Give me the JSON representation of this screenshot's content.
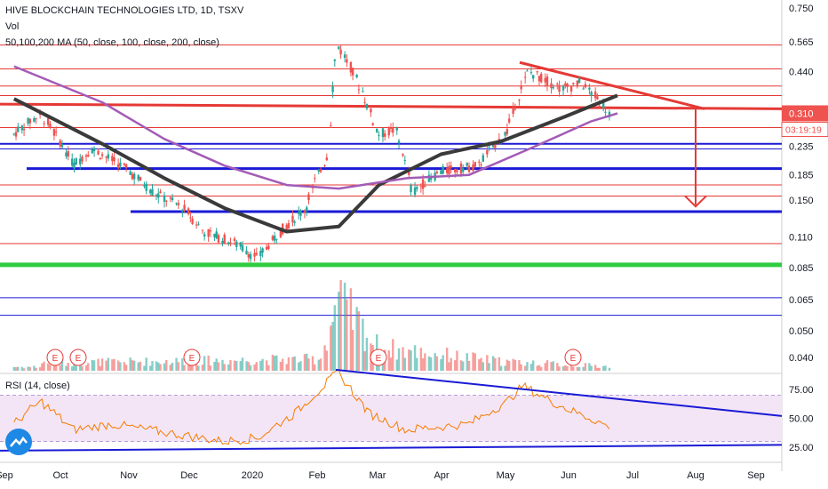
{
  "header": {
    "symbol_line": "HIVE BLOCKCHAIN TECHNOLOGIES LTD, 1D, TSXV",
    "vol_label": "Vol",
    "ma_label": "50,100,200 MA (50, close, 100, close, 200, close)",
    "rsi_label": "RSI (14, close)"
  },
  "colors": {
    "up": "#26a69a",
    "down": "#ef5350",
    "ma_dark": "#3a3a3a",
    "ma_purple": "#a35bb6",
    "red_line": "#e53935",
    "blue_line": "#1a1ad6",
    "green_line": "#2ecc40",
    "rsi_line": "#f57c00",
    "rsi_band": "#f3e5f5",
    "price_tag": "#ef5350"
  },
  "chart_data": {
    "type": "candlestick",
    "price_axis_ticks": [
      "0.750",
      "0.565",
      "0.440",
      "0.310",
      "0.235",
      "0.185",
      "0.150",
      "0.110",
      "0.085",
      "0.065",
      "0.050",
      "0.040"
    ],
    "price_scale": "log",
    "time_axis_ticks": [
      "Sep",
      "Oct",
      "Nov",
      "Dec",
      "2020",
      "Feb",
      "Mar",
      "Apr",
      "May",
      "Jun",
      "Jul",
      "Aug",
      "Sep"
    ],
    "last_price": "0.310",
    "countdown": "03:19:19",
    "earnings_markers": [
      "E",
      "E",
      "E",
      "E",
      "E"
    ],
    "price_path": [
      [
        "2019-09-01",
        0.26
      ],
      [
        "2019-09-15",
        0.31
      ],
      [
        "2019-09-25",
        0.24
      ],
      [
        "2019-10-01",
        0.2
      ],
      [
        "2019-10-10",
        0.23
      ],
      [
        "2019-10-25",
        0.2
      ],
      [
        "2019-11-10",
        0.16
      ],
      [
        "2019-11-25",
        0.14
      ],
      [
        "2019-12-05",
        0.115
      ],
      [
        "2019-12-20",
        0.105
      ],
      [
        "2020-01-01",
        0.092
      ],
      [
        "2020-01-10",
        0.11
      ],
      [
        "2020-01-25",
        0.14
      ],
      [
        "2020-02-05",
        0.22
      ],
      [
        "2020-02-10",
        0.55
      ],
      [
        "2020-02-20",
        0.4
      ],
      [
        "2020-03-01",
        0.26
      ],
      [
        "2020-03-10",
        0.27
      ],
      [
        "2020-03-18",
        0.16
      ],
      [
        "2020-04-01",
        0.19
      ],
      [
        "2020-04-20",
        0.2
      ],
      [
        "2020-05-05",
        0.27
      ],
      [
        "2020-05-15",
        0.44
      ],
      [
        "2020-06-01",
        0.38
      ],
      [
        "2020-06-10",
        0.4
      ],
      [
        "2020-06-25",
        0.31
      ]
    ],
    "moving_averages": [
      {
        "name": "MA 50",
        "color": "#3a3a3a",
        "points": [
          [
            "2019-09-01",
            0.35
          ],
          [
            "2019-10-15",
            0.24
          ],
          [
            "2019-11-15",
            0.18
          ],
          [
            "2019-12-15",
            0.14
          ],
          [
            "2020-01-15",
            0.115
          ],
          [
            "2020-02-10",
            0.12
          ],
          [
            "2020-03-01",
            0.17
          ],
          [
            "2020-04-01",
            0.22
          ],
          [
            "2020-05-01",
            0.245
          ],
          [
            "2020-06-01",
            0.3
          ],
          [
            "2020-06-28",
            0.36
          ]
        ]
      },
      {
        "name": "MA 100",
        "color": "#a35bb6",
        "points": [
          [
            "2019-09-01",
            0.46
          ],
          [
            "2019-10-15",
            0.34
          ],
          [
            "2019-11-15",
            0.25
          ],
          [
            "2019-12-15",
            0.2
          ],
          [
            "2020-01-15",
            0.17
          ],
          [
            "2020-02-10",
            0.165
          ],
          [
            "2020-03-15",
            0.18
          ],
          [
            "2020-04-15",
            0.185
          ],
          [
            "2020-05-15",
            0.23
          ],
          [
            "2020-06-15",
            0.29
          ],
          [
            "2020-06-28",
            0.31
          ]
        ]
      }
    ],
    "volume_path": [
      [
        "2019-09-15",
        0.1
      ],
      [
        "2020-02-01",
        0.15
      ],
      [
        "2020-02-10",
        0.9
      ],
      [
        "2020-03-01",
        0.3
      ],
      [
        "2020-05-01",
        0.12
      ],
      [
        "2020-06-28",
        0.05
      ]
    ],
    "rsi": {
      "ticks": [
        "75.00",
        "50.00",
        "25.00"
      ],
      "band": [
        30,
        70
      ],
      "path": [
        [
          "2019-09-01",
          45
        ],
        [
          "2019-09-15",
          65
        ],
        [
          "2019-10-01",
          40
        ],
        [
          "2019-10-20",
          45
        ],
        [
          "2019-11-15",
          38
        ],
        [
          "2019-12-15",
          30
        ],
        [
          "2020-01-01",
          33
        ],
        [
          "2020-01-20",
          55
        ],
        [
          "2020-02-10",
          90
        ],
        [
          "2020-02-25",
          55
        ],
        [
          "2020-03-15",
          40
        ],
        [
          "2020-04-15",
          45
        ],
        [
          "2020-05-05",
          65
        ],
        [
          "2020-05-12",
          78
        ],
        [
          "2020-06-01",
          60
        ],
        [
          "2020-06-15",
          50
        ],
        [
          "2020-06-28",
          40
        ]
      ]
    }
  }
}
